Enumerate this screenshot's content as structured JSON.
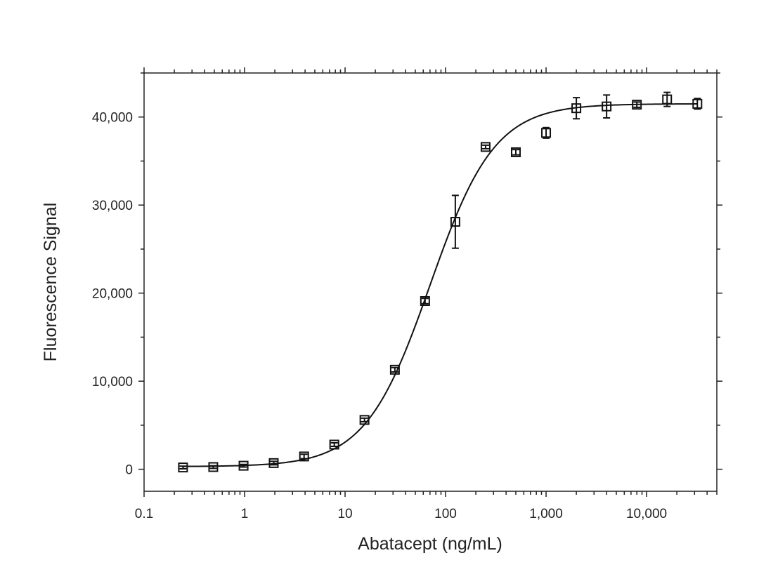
{
  "chart_data": {
    "type": "scatter",
    "title": "",
    "xlabel": "Abatacept (ng/mL)",
    "ylabel": "Fluorescence Signal",
    "xscale": "log",
    "xlim": [
      0.1,
      50000
    ],
    "ylim": [
      -2500,
      45000
    ],
    "x_ticks": [
      0.1,
      1,
      10,
      100,
      1000,
      10000
    ],
    "x_tick_labels": [
      "0.1",
      "1",
      "10",
      "100",
      "1,000",
      "10,000"
    ],
    "y_ticks": [
      0,
      10000,
      20000,
      30000,
      40000
    ],
    "y_tick_labels": [
      "0",
      "10,000",
      "20,000",
      "30,000",
      "40,000"
    ],
    "grid": false,
    "marker": "open-square",
    "color": "#111111",
    "series": [
      {
        "x": [
          0.244,
          0.488,
          0.977,
          1.95,
          3.91,
          7.81,
          15.6,
          31.3,
          62.5,
          125,
          250,
          500,
          1000,
          2000,
          4000,
          8000,
          16000,
          32000
        ],
        "y": [
          200,
          250,
          400,
          700,
          1450,
          2800,
          5600,
          11300,
          19100,
          28100,
          36600,
          36000,
          38200,
          41000,
          41200,
          41400,
          42000,
          41500
        ],
        "error": [
          150,
          150,
          150,
          200,
          250,
          200,
          200,
          250,
          300,
          3000,
          200,
          300,
          600,
          1200,
          1300,
          300,
          800,
          600
        ]
      }
    ],
    "fit_curve": {
      "type": "four-parameter logistic",
      "bottom": 300,
      "top": 41500,
      "ec50": 70,
      "hill": 1.35
    }
  }
}
